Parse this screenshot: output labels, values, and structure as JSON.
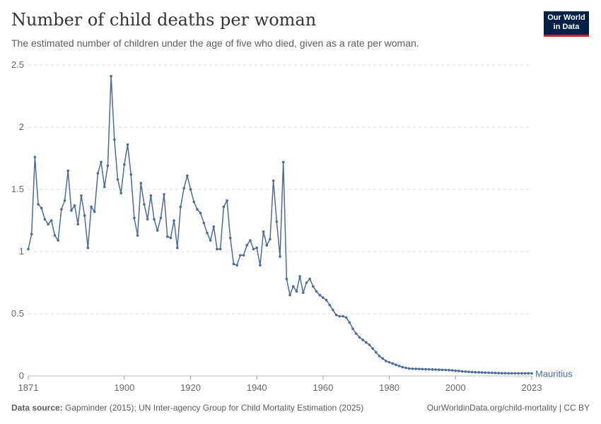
{
  "header": {
    "title": "Number of child deaths per woman",
    "subtitle": "The estimated number of children under the age of five who died, given as a rate per woman.",
    "logo_line1": "Our World",
    "logo_line2": "in Data"
  },
  "footer": {
    "source_label": "Data source:",
    "source_text": "Gapminder (2015); UN Inter-agency Group for Child Mortality Estimation (2025)",
    "url_license": "OurWorldinData.org/child-mortality | CC BY"
  },
  "colors": {
    "line": "#4c6a9c",
    "grid": "#dddddd",
    "text": "#666666"
  },
  "chart_data": {
    "type": "line",
    "title": "Number of child deaths per woman",
    "xlim": [
      1871,
      2023
    ],
    "ylim": [
      0,
      2.5
    ],
    "yticks": [
      0,
      0.5,
      1,
      1.5,
      2,
      2.5
    ],
    "ytick_labels": [
      "0",
      "0.5",
      "1",
      "1.5",
      "2",
      "2.5"
    ],
    "xticks": [
      1871,
      1900,
      1920,
      1940,
      1960,
      1980,
      2000,
      2023
    ],
    "xtick_labels": [
      "1871",
      "1900",
      "1920",
      "1940",
      "1960",
      "1980",
      "2000",
      "2023"
    ],
    "grid": "horizontal-dashed",
    "series": [
      {
        "name": "Mauritius",
        "x": [
          1871,
          1872,
          1873,
          1874,
          1875,
          1876,
          1877,
          1878,
          1879,
          1880,
          1881,
          1882,
          1883,
          1884,
          1885,
          1886,
          1887,
          1888,
          1889,
          1890,
          1891,
          1892,
          1893,
          1894,
          1895,
          1896,
          1897,
          1898,
          1899,
          1900,
          1901,
          1902,
          1903,
          1904,
          1905,
          1906,
          1907,
          1908,
          1909,
          1910,
          1911,
          1912,
          1913,
          1914,
          1915,
          1916,
          1917,
          1918,
          1919,
          1920,
          1921,
          1922,
          1923,
          1924,
          1925,
          1926,
          1927,
          1928,
          1929,
          1930,
          1931,
          1932,
          1933,
          1934,
          1935,
          1936,
          1937,
          1938,
          1939,
          1940,
          1941,
          1942,
          1943,
          1944,
          1945,
          1946,
          1947,
          1948,
          1949,
          1950,
          1951,
          1952,
          1953,
          1954,
          1955,
          1956,
          1957,
          1958,
          1959,
          1960,
          1961,
          1962,
          1963,
          1964,
          1965,
          1966,
          1967,
          1968,
          1969,
          1970,
          1971,
          1972,
          1973,
          1974,
          1975,
          1976,
          1977,
          1978,
          1979,
          1980,
          1981,
          1982,
          1983,
          1984,
          1985,
          1986,
          1987,
          1988,
          1989,
          1990,
          1991,
          1992,
          1993,
          1994,
          1995,
          1996,
          1997,
          1998,
          1999,
          2000,
          2001,
          2002,
          2003,
          2004,
          2005,
          2006,
          2007,
          2008,
          2009,
          2010,
          2011,
          2012,
          2013,
          2014,
          2015,
          2016,
          2017,
          2018,
          2019,
          2020,
          2021,
          2022,
          2023
        ],
        "y": [
          1.02,
          1.14,
          1.76,
          1.38,
          1.35,
          1.26,
          1.22,
          1.25,
          1.13,
          1.09,
          1.34,
          1.41,
          1.65,
          1.33,
          1.37,
          1.22,
          1.45,
          1.29,
          1.03,
          1.36,
          1.32,
          1.63,
          1.72,
          1.52,
          1.69,
          2.41,
          1.9,
          1.58,
          1.47,
          1.7,
          1.86,
          1.62,
          1.27,
          1.13,
          1.55,
          1.38,
          1.26,
          1.45,
          1.26,
          1.17,
          1.27,
          1.46,
          1.12,
          1.11,
          1.25,
          1.03,
          1.36,
          1.51,
          1.61,
          1.5,
          1.4,
          1.34,
          1.31,
          1.23,
          1.15,
          1.09,
          1.2,
          1.02,
          1.02,
          1.36,
          1.41,
          1.11,
          0.9,
          0.89,
          0.97,
          0.97,
          1.05,
          1.09,
          1.02,
          1.03,
          0.89,
          1.16,
          1.05,
          1.1,
          1.57,
          1.24,
          0.96,
          1.72,
          0.78,
          0.65,
          0.72,
          0.68,
          0.8,
          0.67,
          0.75,
          0.78,
          0.72,
          0.68,
          0.65,
          0.63,
          0.61,
          0.57,
          0.53,
          0.49,
          0.48,
          0.48,
          0.47,
          0.43,
          0.38,
          0.34,
          0.31,
          0.29,
          0.27,
          0.25,
          0.22,
          0.19,
          0.16,
          0.14,
          0.12,
          0.11,
          0.1,
          0.09,
          0.08,
          0.07,
          0.065,
          0.06,
          0.058,
          0.057,
          0.056,
          0.055,
          0.054,
          0.053,
          0.052,
          0.051,
          0.05,
          0.049,
          0.048,
          0.047,
          0.045,
          0.042,
          0.04,
          0.037,
          0.035,
          0.033,
          0.031,
          0.03,
          0.029,
          0.028,
          0.027,
          0.026,
          0.025,
          0.024,
          0.023,
          0.022,
          0.022,
          0.021,
          0.021,
          0.021,
          0.021,
          0.021,
          0.021,
          0.021,
          0.021
        ]
      }
    ]
  }
}
